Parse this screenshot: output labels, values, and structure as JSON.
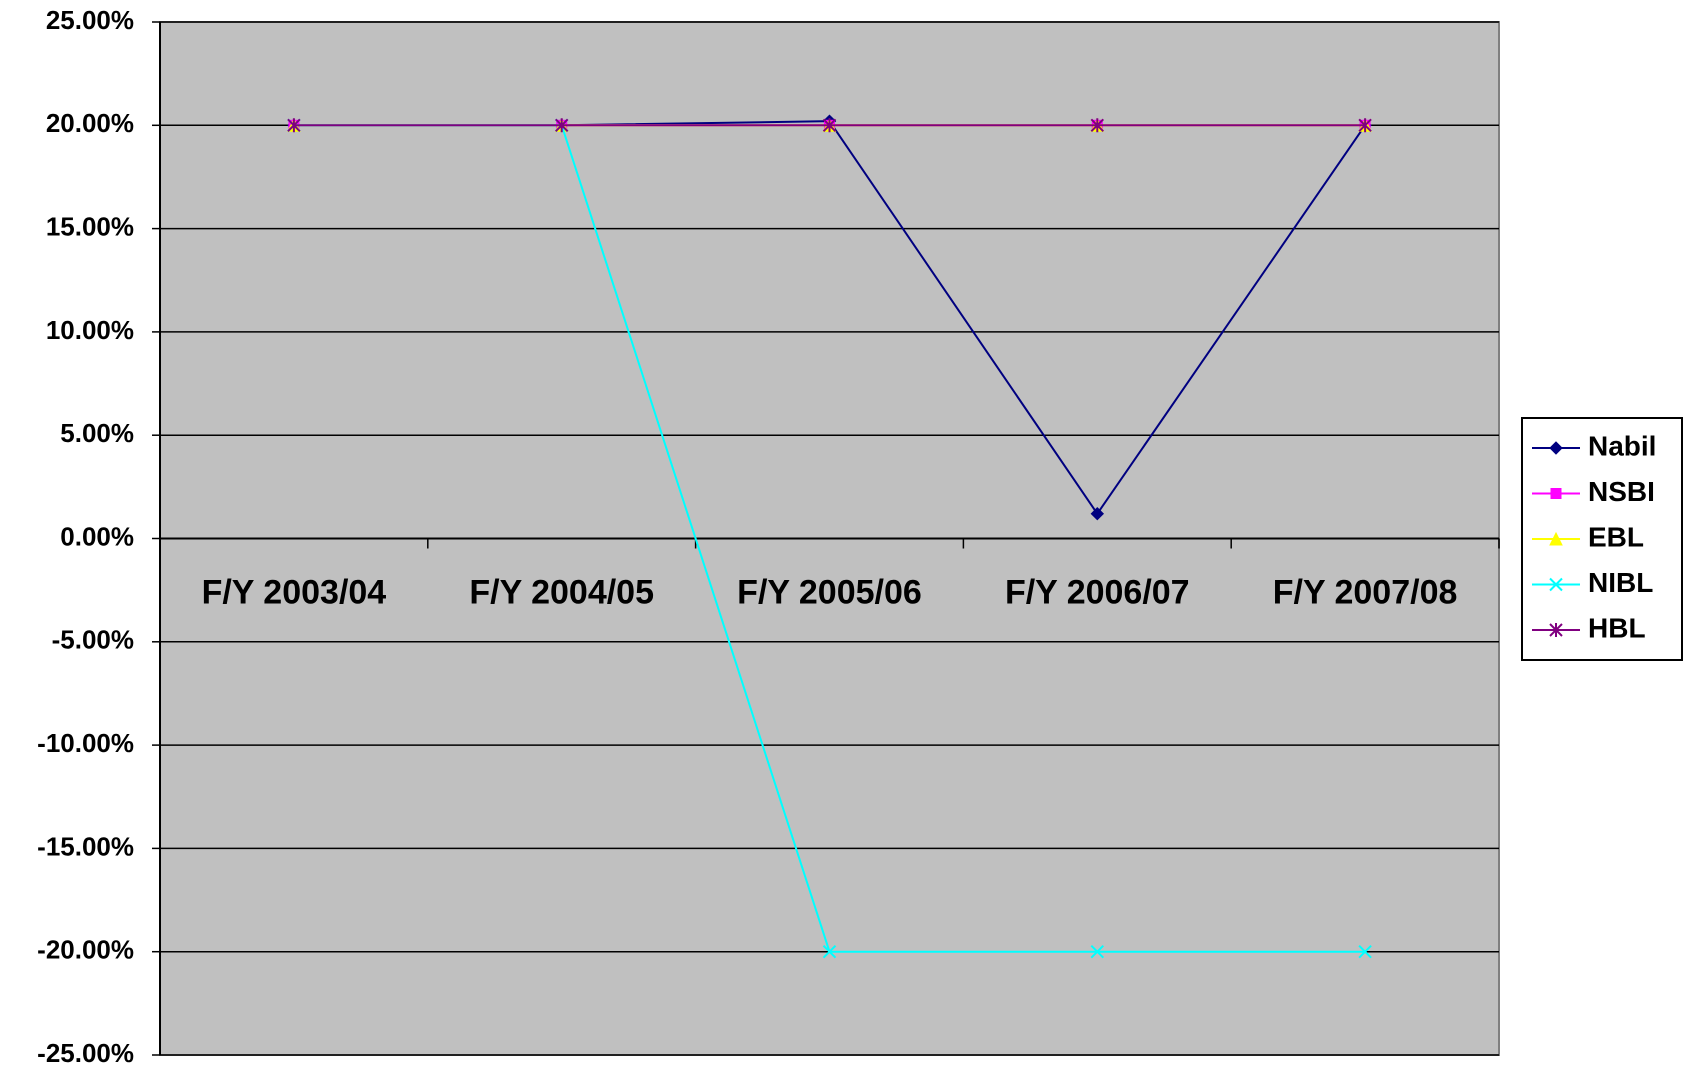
{
  "chart_data": {
    "type": "line",
    "categories": [
      "F/Y 2003/04",
      "F/Y 2004/05",
      "F/Y 2005/06",
      "F/Y 2006/07",
      "F/Y 2007/08"
    ],
    "series": [
      {
        "name": "Nabil",
        "color": "#000080",
        "values": [
          20,
          20,
          20.2,
          1.2,
          20
        ]
      },
      {
        "name": "NSBI",
        "color": "#ff00ff",
        "values": [
          20,
          20,
          20,
          20,
          20
        ]
      },
      {
        "name": "EBL",
        "color": "#ffff00",
        "values": [
          20,
          20,
          20,
          20,
          20
        ]
      },
      {
        "name": "NIBL",
        "color": "#00ffff",
        "values": [
          20,
          20,
          -20,
          -20,
          -20
        ]
      },
      {
        "name": "HBL",
        "color": "#800080",
        "values": [
          20,
          20,
          20,
          20,
          20
        ]
      }
    ],
    "ylim": [
      -25,
      25
    ],
    "yticks": [
      {
        "value": -25,
        "label": "-25.00%"
      },
      {
        "value": -20,
        "label": "-20.00%"
      },
      {
        "value": -15,
        "label": "-15.00%"
      },
      {
        "value": -10,
        "label": "-10.00%"
      },
      {
        "value": -5,
        "label": "-5.00%"
      },
      {
        "value": 0,
        "label": "0.00%"
      },
      {
        "value": 5,
        "label": "5.00%"
      },
      {
        "value": 10,
        "label": "10.00%"
      },
      {
        "value": 15,
        "label": "15.00%"
      },
      {
        "value": 20,
        "label": "20.00%"
      },
      {
        "value": 25,
        "label": "25.00%"
      }
    ],
    "grid": true,
    "legend": "right",
    "plot_background": "#c0c0c0"
  }
}
